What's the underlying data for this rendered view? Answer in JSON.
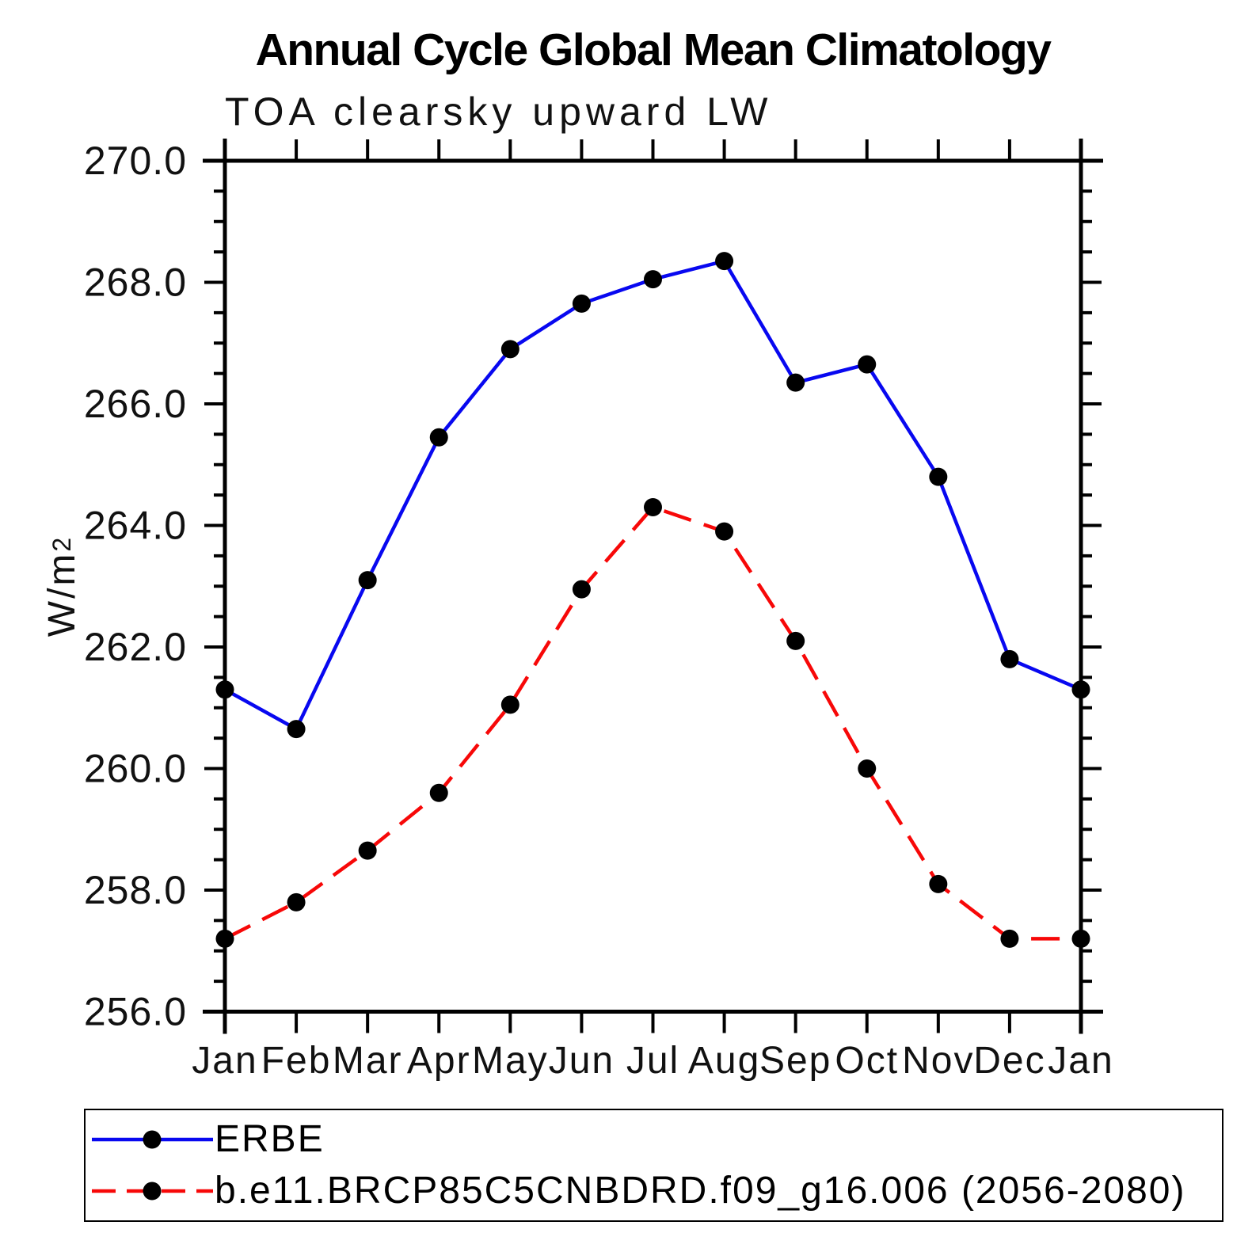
{
  "chart_data": {
    "type": "line",
    "title": "Annual Cycle Global Mean Climatology",
    "subtitle": "TOA clearsky upward LW",
    "ylabel": "W/m²",
    "ylabel_base": "W/m",
    "ylabel_sup": "2",
    "xlabel": "",
    "categories": [
      "Jan",
      "Feb",
      "Mar",
      "Apr",
      "May",
      "Jun",
      "Jul",
      "Aug",
      "Sep",
      "Oct",
      "Nov",
      "Dec",
      "Jan"
    ],
    "ylim": [
      256.0,
      270.0
    ],
    "y_major_step": 2.0,
    "y_minor_step": 0.5,
    "y_tick_labels": [
      "256.0",
      "258.0",
      "260.0",
      "262.0",
      "264.0",
      "266.0",
      "268.0",
      "270.0"
    ],
    "grid": false,
    "legend_position": "bottom",
    "axis_color": "#000000",
    "marker_color": "#000000",
    "series": [
      {
        "name": "ERBE",
        "color": "#0808f0",
        "style": "solid",
        "marker": "circle",
        "values": [
          261.3,
          260.65,
          263.1,
          265.45,
          266.9,
          267.65,
          268.05,
          268.35,
          266.35,
          266.65,
          264.8,
          261.8,
          261.3
        ]
      },
      {
        "name": "b.e11.BRCP85C5CNBDRD.f09_g16.006 (2056-2080)",
        "color": "#f70808",
        "style": "dashed",
        "marker": "circle",
        "values": [
          257.2,
          257.8,
          258.65,
          259.6,
          261.05,
          262.95,
          264.3,
          263.9,
          262.1,
          260.0,
          258.1,
          257.2,
          257.2
        ]
      }
    ]
  }
}
